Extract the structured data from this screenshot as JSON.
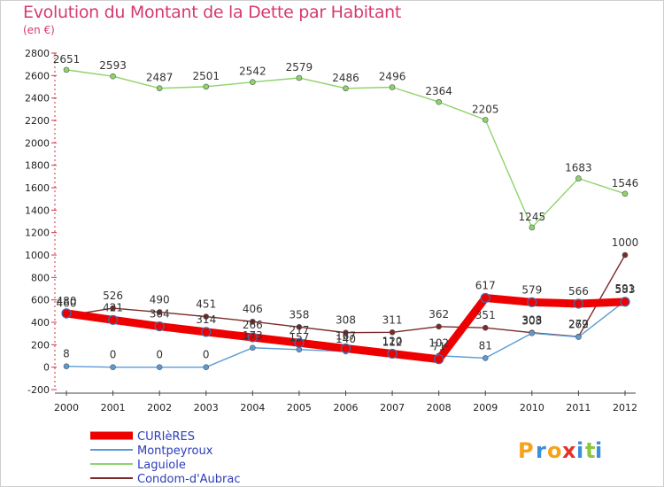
{
  "chart_data": {
    "type": "line",
    "title": "Evolution du Montant de la Dette par Habitant",
    "subtitle": "(en €)",
    "x": [
      "2000",
      "2001",
      "2002",
      "2003",
      "2004",
      "2005",
      "2006",
      "2007",
      "2008",
      "2009",
      "2010",
      "2011",
      "2012"
    ],
    "ylim": [
      -200,
      2800
    ],
    "yticks": [
      -200,
      0,
      200,
      400,
      600,
      800,
      1000,
      1200,
      1400,
      1600,
      1800,
      2000,
      2200,
      2400,
      2600,
      2800
    ],
    "grid": false,
    "legend_position": "bottom-left",
    "series": [
      {
        "name": "CURIèRES",
        "color": "#ee0000",
        "values": [
          480,
          421,
          364,
          314,
          266,
          217,
          167,
          120,
          71,
          617,
          579,
          566,
          583
        ],
        "labels": [
          "480",
          "421",
          "364",
          "314",
          "266",
          "217",
          "167",
          "120",
          "71",
          "617",
          "579",
          "566",
          "583"
        ]
      },
      {
        "name": "Montpeyroux",
        "color": "#5b9bd5",
        "values": [
          8,
          0,
          0,
          0,
          173,
          157,
          140,
          112,
          102,
          81,
          303,
          269,
          591
        ],
        "labels": [
          "8",
          "0",
          "0",
          "0",
          "173",
          "157",
          "140",
          "112",
          "102",
          "81",
          "303",
          "269",
          "591"
        ]
      },
      {
        "name": "Laguiole",
        "color": "#8ed36a",
        "values": [
          2651,
          2593,
          2487,
          2501,
          2542,
          2579,
          2486,
          2496,
          2364,
          2205,
          1245,
          1683,
          1546
        ],
        "labels": [
          "2651",
          "2593",
          "2487",
          "2501",
          "2542",
          "2579",
          "2486",
          "2496",
          "2364",
          "2205",
          "1245",
          "1683",
          "1546"
        ]
      },
      {
        "name": "Condom-d'Aubrac",
        "color": "#7a2a2a",
        "values": [
          460,
          526,
          490,
          451,
          406,
          358,
          308,
          311,
          362,
          351,
          308,
          272,
          1000
        ],
        "labels": [
          "460",
          "526",
          "490",
          "451",
          "406",
          "358",
          "308",
          "311",
          "362",
          "351",
          "308",
          "272",
          "1000"
        ]
      }
    ]
  },
  "logo": {
    "letters": [
      "P",
      "r",
      "o",
      "x",
      "i",
      "t",
      "i"
    ],
    "colors": [
      "#f7a21b",
      "#3b8ed8",
      "#f7a21b",
      "#e5332a",
      "#3b8ed8",
      "#8cc63f",
      "#3b8ed8"
    ]
  }
}
